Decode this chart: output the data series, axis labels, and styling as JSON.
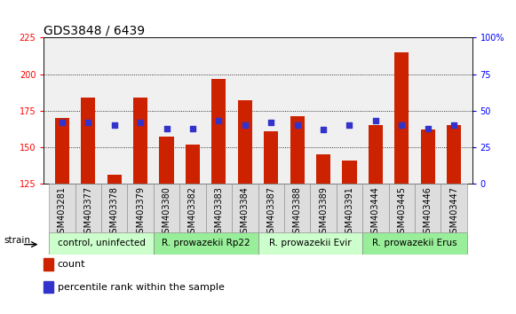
{
  "title": "GDS3848 / 6439",
  "samples": [
    "GSM403281",
    "GSM403377",
    "GSM403378",
    "GSM403379",
    "GSM403380",
    "GSM403382",
    "GSM403383",
    "GSM403384",
    "GSM403387",
    "GSM403388",
    "GSM403389",
    "GSM403391",
    "GSM403444",
    "GSM403445",
    "GSM403446",
    "GSM403447"
  ],
  "bar_values": [
    170,
    184,
    131,
    184,
    157,
    152,
    197,
    182,
    161,
    171,
    145,
    141,
    165,
    215,
    162,
    165
  ],
  "blue_values": [
    167,
    167,
    165,
    167,
    163,
    163,
    168,
    165,
    167,
    165,
    162,
    165,
    168,
    165,
    163,
    165
  ],
  "bar_color": "#cc2200",
  "blue_color": "#3333cc",
  "ylim_left": [
    125,
    225
  ],
  "ylim_right": [
    0,
    100
  ],
  "yticks_left": [
    125,
    150,
    175,
    200,
    225
  ],
  "yticks_right": [
    0,
    25,
    50,
    75,
    100
  ],
  "grid_values": [
    150,
    175,
    200
  ],
  "groups": [
    {
      "label": "control, uninfected",
      "start": 0,
      "end": 3,
      "color": "#ccffcc"
    },
    {
      "label": "R. prowazekii Rp22",
      "start": 4,
      "end": 7,
      "color": "#99ee99"
    },
    {
      "label": "R. prowazekii Evir",
      "start": 8,
      "end": 11,
      "color": "#ccffcc"
    },
    {
      "label": "R. prowazekii Erus",
      "start": 12,
      "end": 15,
      "color": "#99ee99"
    }
  ],
  "xlabel_strain": "strain",
  "legend_items": [
    {
      "label": "count",
      "color": "#cc2200"
    },
    {
      "label": "percentile rank within the sample",
      "color": "#3333cc"
    }
  ],
  "bg_color": "#ffffff",
  "plot_bg": "#f0f0f0",
  "bar_width": 0.55,
  "title_fontsize": 10,
  "tick_fontsize": 7,
  "label_fontsize": 7,
  "group_fontsize": 7.5
}
